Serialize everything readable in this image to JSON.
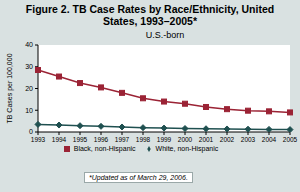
{
  "chart_data": {
    "type": "line",
    "title": "Figure 2. TB Case Rates by Race/Ethnicity, United States, 1993–2005*",
    "subtitle": "U.S.-born",
    "ylabel": "TB Cases per 100,000",
    "footnote": "*Updated as of March 29, 2006.",
    "categories": [
      "1993",
      "1994",
      "1995",
      "1996",
      "1997",
      "1998",
      "1999",
      "2000",
      "2001",
      "2002",
      "2003",
      "2004",
      "2005"
    ],
    "series": [
      {
        "name": "Black, non-Hispanic",
        "color": "#9B2335",
        "marker": "square",
        "values": [
          28.5,
          25.5,
          22.5,
          20.5,
          18,
          15.5,
          14,
          13,
          11.5,
          10.5,
          9.8,
          9.5,
          9
        ]
      },
      {
        "name": "White, non-Hispanic",
        "color": "#1F5050",
        "marker": "diamond",
        "values": [
          3.5,
          3.2,
          2.9,
          2.6,
          2.3,
          2.0,
          1.8,
          1.6,
          1.5,
          1.4,
          1.3,
          1.2,
          1.1
        ]
      }
    ],
    "ylim": [
      0,
      40
    ],
    "yticks": [
      0,
      10,
      20,
      30,
      40
    ],
    "grid": false,
    "legend": "bottom"
  }
}
